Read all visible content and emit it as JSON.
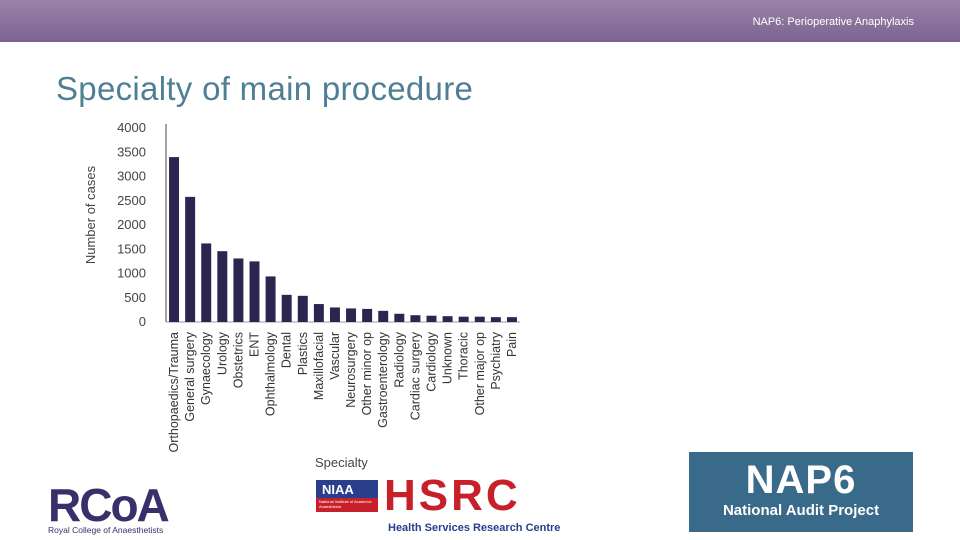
{
  "header": {
    "title": "NAP6: Perioperative Anaphylaxis"
  },
  "slide": {
    "title": "Specialty of main procedure"
  },
  "chart_data": {
    "type": "bar",
    "xlabel": "Specialty",
    "ylabel": "Number of cases",
    "ylim": [
      0,
      4000
    ],
    "yticks": [
      0,
      500,
      1000,
      1500,
      2000,
      2500,
      3000,
      3500,
      4000
    ],
    "categories": [
      "Orthopaedics/Trauma",
      "General surgery",
      "Gynaecology",
      "Urology",
      "Obstetrics",
      "ENT",
      "Ophthalmology",
      "Dental",
      "Plastics",
      "Maxillofacial",
      "Vascular",
      "Neurosurgery",
      "Other minor op",
      "Gastroenterology",
      "Radiology",
      "Cardiac surgery",
      "Cardiology",
      "Unknown",
      "Thoracic",
      "Other major op",
      "Psychiatry",
      "Pain"
    ],
    "values": [
      3400,
      2580,
      1620,
      1460,
      1310,
      1250,
      940,
      560,
      540,
      370,
      300,
      280,
      270,
      230,
      170,
      140,
      130,
      120,
      110,
      110,
      100,
      100
    ],
    "bar_color": "#2d2550"
  },
  "logos": {
    "rcoa": {
      "letters": "RCoA",
      "subtitle": "Royal College of Anaesthetists"
    },
    "niaa": {
      "name": "NIAA",
      "subtitle": "National Institute of Academic Anaesthesia"
    },
    "hsrc": {
      "letters": "HSRC",
      "subtitle": "Health Services Research Centre"
    },
    "nap6": {
      "name": "NAP6",
      "subtitle": "National Audit Project"
    }
  }
}
